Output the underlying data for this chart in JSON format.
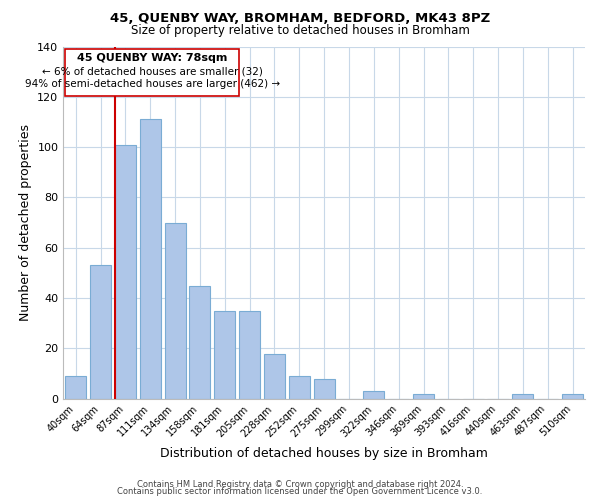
{
  "title": "45, QUENBY WAY, BROMHAM, BEDFORD, MK43 8PZ",
  "subtitle": "Size of property relative to detached houses in Bromham",
  "xlabel": "Distribution of detached houses by size in Bromham",
  "ylabel": "Number of detached properties",
  "bar_labels": [
    "40sqm",
    "64sqm",
    "87sqm",
    "111sqm",
    "134sqm",
    "158sqm",
    "181sqm",
    "205sqm",
    "228sqm",
    "252sqm",
    "275sqm",
    "299sqm",
    "322sqm",
    "346sqm",
    "369sqm",
    "393sqm",
    "416sqm",
    "440sqm",
    "463sqm",
    "487sqm",
    "510sqm"
  ],
  "bar_values": [
    9,
    53,
    101,
    111,
    70,
    45,
    35,
    35,
    18,
    9,
    8,
    0,
    3,
    0,
    2,
    0,
    0,
    0,
    2,
    0,
    2
  ],
  "bar_color": "#aec6e8",
  "bar_edge_color": "#7aacd4",
  "vline_color": "#cc0000",
  "vline_index": 2,
  "ylim": [
    0,
    140
  ],
  "yticks": [
    0,
    20,
    40,
    60,
    80,
    100,
    120,
    140
  ],
  "annotation_title": "45 QUENBY WAY: 78sqm",
  "annotation_line1": "← 6% of detached houses are smaller (32)",
  "annotation_line2": "94% of semi-detached houses are larger (462) →",
  "footer_line1": "Contains HM Land Registry data © Crown copyright and database right 2024.",
  "footer_line2": "Contains public sector information licensed under the Open Government Licence v3.0.",
  "background_color": "#ffffff",
  "grid_color": "#c8d8e8",
  "figsize": [
    6.0,
    5.0
  ],
  "dpi": 100
}
